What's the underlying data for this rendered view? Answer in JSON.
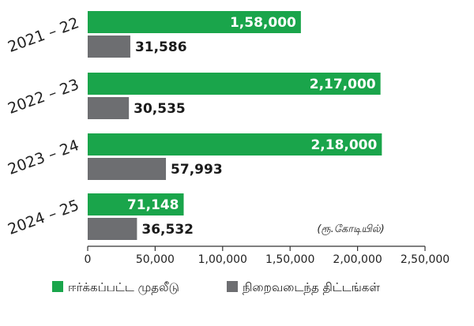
{
  "chart_data": {
    "type": "bar",
    "orientation": "horizontal",
    "categories": [
      "2021 – 22",
      "2022 – 23",
      "2023 – 24",
      "2024 – 25"
    ],
    "series": [
      {
        "name": "ஈர்க்கப்பட்ட முதலீடு",
        "color": "#1aa54b",
        "values": [
          158000,
          217000,
          218000,
          71148
        ],
        "labels": [
          "1,58,000",
          "2,17,000",
          "2,18,000",
          "71,148"
        ]
      },
      {
        "name": "நிறைவடைந்த திட்டங்கள்",
        "color": "#6d6e71",
        "values": [
          31586,
          30535,
          57993,
          36532
        ],
        "labels": [
          "31,586",
          "30,535",
          "57,993",
          "36,532"
        ]
      }
    ],
    "xlim": [
      0,
      250000
    ],
    "xticks": [
      0,
      50000,
      100000,
      150000,
      200000,
      250000
    ],
    "xtick_labels": [
      "0",
      "50,000",
      "1,00,000",
      "1,50,000",
      "2,00,000",
      "2,50,000"
    ],
    "unit_note": "(ரூ.கோடியில்)",
    "legend_position": "bottom",
    "grid": false
  }
}
